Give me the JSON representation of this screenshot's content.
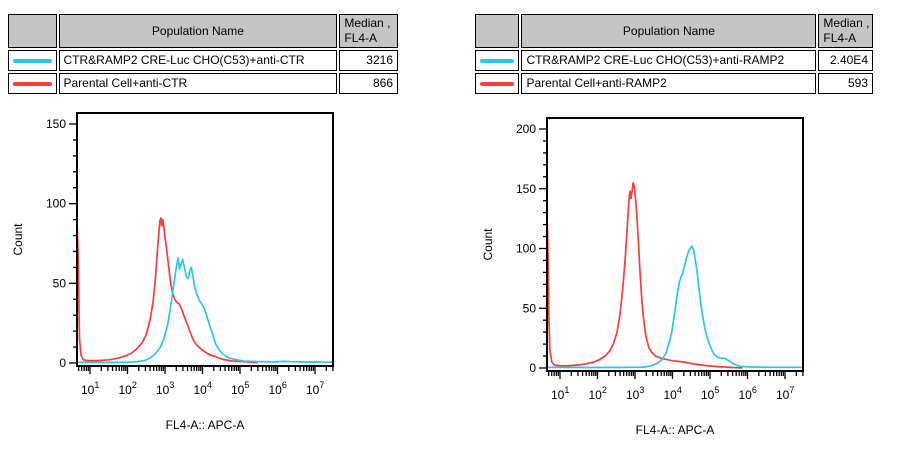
{
  "panels": [
    {
      "id": "anti-CTR",
      "table": {
        "population_header": "Population Name",
        "median_header_line1": "Median ,",
        "median_header_line2": "FL4-A",
        "rows": [
          {
            "color": "#2bc5f4",
            "name": "CTR&RAMP2 CRE-Luc CHO(C53)+anti-CTR",
            "median": "3216"
          },
          {
            "color": "#fa3c3c",
            "name": "Parental Cell+anti-CTR",
            "median": "866"
          }
        ]
      }
    },
    {
      "id": "anti-RAMP2",
      "table": {
        "population_header": "Population Name",
        "median_header_line1": "Median ,",
        "median_header_line2": "FL4-A",
        "rows": [
          {
            "color": "#2bc5f4",
            "name": "CTR&RAMP2 CRE-Luc CHO(C53)+anti-RAMP2",
            "median": "2.40E4"
          },
          {
            "color": "#fa3c3c",
            "name": "Parental Cell+anti-RAMP2",
            "median": "593"
          }
        ]
      }
    }
  ],
  "chart_data": [
    {
      "type": "line",
      "subtype": "flow-histogram",
      "xlabel": "FL4-A:: APC-A",
      "ylabel": "Count",
      "x_scale": "log10",
      "x_range_log": [
        0.653,
        7.48
      ],
      "x_major_decades": [
        1,
        2,
        3,
        4,
        5,
        6,
        7
      ],
      "x_tick_labels": [
        "10^1",
        "10^2",
        "10^3",
        "10^4",
        "10^5",
        "10^6",
        "10^7"
      ],
      "ylim": [
        0,
        157
      ],
      "y_ticks": [
        0,
        50,
        100,
        150
      ],
      "y_minor_step": 10,
      "grid": false,
      "legend_position": "none (series identified in table above)",
      "series": [
        {
          "name": "Parental Cell+anti-CTR",
          "color": "#fa3c3c",
          "median_fl4a": 866,
          "points_logx_count": [
            [
              0.653,
              0
            ],
            [
              0.66,
              85
            ],
            [
              0.68,
              70
            ],
            [
              0.7,
              40
            ],
            [
              0.72,
              15
            ],
            [
              0.76,
              5
            ],
            [
              0.82,
              2
            ],
            [
              0.95,
              1.5
            ],
            [
              1.2,
              1.5
            ],
            [
              1.5,
              2
            ],
            [
              1.75,
              3
            ],
            [
              1.95,
              4.5
            ],
            [
              2.1,
              6
            ],
            [
              2.25,
              9
            ],
            [
              2.4,
              13
            ],
            [
              2.5,
              18
            ],
            [
              2.6,
              27
            ],
            [
              2.68,
              38
            ],
            [
              2.74,
              52
            ],
            [
              2.79,
              68
            ],
            [
              2.83,
              80
            ],
            [
              2.86,
              89
            ],
            [
              2.89,
              91
            ],
            [
              2.91,
              86
            ],
            [
              2.94,
              90
            ],
            [
              2.97,
              85
            ],
            [
              3.0,
              79
            ],
            [
              3.04,
              72
            ],
            [
              3.08,
              64
            ],
            [
              3.12,
              56
            ],
            [
              3.16,
              49
            ],
            [
              3.2,
              44
            ],
            [
              3.26,
              40
            ],
            [
              3.32,
              38
            ],
            [
              3.38,
              37
            ],
            [
              3.44,
              34
            ],
            [
              3.5,
              30
            ],
            [
              3.58,
              25
            ],
            [
              3.66,
              20
            ],
            [
              3.74,
              15
            ],
            [
              3.82,
              12
            ],
            [
              3.9,
              10
            ],
            [
              4.0,
              8
            ],
            [
              4.1,
              6.5
            ],
            [
              4.2,
              5
            ],
            [
              4.35,
              4
            ],
            [
              4.5,
              2.5
            ],
            [
              4.65,
              1.8
            ],
            [
              4.8,
              1.2
            ],
            [
              5.0,
              1
            ],
            [
              5.2,
              0.6
            ],
            [
              5.45,
              0.2
            ]
          ]
        },
        {
          "name": "CTR&RAMP2 CRE-Luc CHO(C53)+anti-CTR",
          "color": "#2bc5f4",
          "median_fl4a": 3216,
          "points_logx_count": [
            [
              0.653,
              0.5
            ],
            [
              1.5,
              0.4
            ],
            [
              2.0,
              0.5
            ],
            [
              2.25,
              0.8
            ],
            [
              2.45,
              1.5
            ],
            [
              2.6,
              3
            ],
            [
              2.75,
              6
            ],
            [
              2.88,
              10
            ],
            [
              2.98,
              16
            ],
            [
              3.08,
              25
            ],
            [
              3.16,
              37
            ],
            [
              3.24,
              50
            ],
            [
              3.3,
              60
            ],
            [
              3.35,
              66
            ],
            [
              3.39,
              59
            ],
            [
              3.43,
              62
            ],
            [
              3.47,
              65
            ],
            [
              3.52,
              60
            ],
            [
              3.57,
              54
            ],
            [
              3.62,
              53
            ],
            [
              3.66,
              58
            ],
            [
              3.7,
              60
            ],
            [
              3.74,
              55
            ],
            [
              3.79,
              48
            ],
            [
              3.85,
              43
            ],
            [
              3.92,
              39
            ],
            [
              3.98,
              37
            ],
            [
              4.05,
              34
            ],
            [
              4.12,
              29
            ],
            [
              4.2,
              23
            ],
            [
              4.28,
              17
            ],
            [
              4.35,
              12
            ],
            [
              4.45,
              8
            ],
            [
              4.55,
              5.5
            ],
            [
              4.68,
              3.5
            ],
            [
              4.8,
              2.5
            ],
            [
              4.95,
              1.8
            ],
            [
              5.1,
              1.2
            ],
            [
              5.3,
              1
            ],
            [
              5.6,
              0.8
            ],
            [
              5.9,
              0.6
            ],
            [
              6.15,
              1
            ],
            [
              6.4,
              0.8
            ],
            [
              6.7,
              0.6
            ],
            [
              7.0,
              0.7
            ],
            [
              7.25,
              0.5
            ],
            [
              7.48,
              0.5
            ]
          ]
        }
      ]
    },
    {
      "type": "line",
      "subtype": "flow-histogram",
      "xlabel": "FL4-A:: APC-A",
      "ylabel": "Count",
      "x_scale": "log10",
      "x_range_log": [
        0.653,
        7.48
      ],
      "x_major_decades": [
        1,
        2,
        3,
        4,
        5,
        6,
        7
      ],
      "x_tick_labels": [
        "10^1",
        "10^2",
        "10^3",
        "10^4",
        "10^5",
        "10^6",
        "10^7"
      ],
      "ylim": [
        0,
        209
      ],
      "y_ticks": [
        0,
        50,
        100,
        150,
        200
      ],
      "y_minor_step": 10,
      "grid": false,
      "legend_position": "none (series identified in table above)",
      "series": [
        {
          "name": "Parental Cell+anti-RAMP2",
          "color": "#fa3c3c",
          "median_fl4a": 593,
          "points_logx_count": [
            [
              0.653,
              0
            ],
            [
              0.66,
              122
            ],
            [
              0.68,
              95
            ],
            [
              0.7,
              45
            ],
            [
              0.73,
              15
            ],
            [
              0.78,
              5
            ],
            [
              0.85,
              2.5
            ],
            [
              1.0,
              1.8
            ],
            [
              1.25,
              2
            ],
            [
              1.5,
              2.5
            ],
            [
              1.7,
              3.5
            ],
            [
              1.9,
              5
            ],
            [
              2.05,
              7
            ],
            [
              2.2,
              10
            ],
            [
              2.32,
              14
            ],
            [
              2.42,
              20
            ],
            [
              2.52,
              30
            ],
            [
              2.6,
              45
            ],
            [
              2.67,
              65
            ],
            [
              2.73,
              88
            ],
            [
              2.78,
              112
            ],
            [
              2.82,
              132
            ],
            [
              2.85,
              145
            ],
            [
              2.87,
              148
            ],
            [
              2.89,
              142
            ],
            [
              2.92,
              147
            ],
            [
              2.95,
              155
            ],
            [
              2.98,
              152
            ],
            [
              3.01,
              143
            ],
            [
              3.05,
              127
            ],
            [
              3.09,
              105
            ],
            [
              3.13,
              82
            ],
            [
              3.17,
              62
            ],
            [
              3.21,
              46
            ],
            [
              3.26,
              33
            ],
            [
              3.31,
              24
            ],
            [
              3.37,
              17
            ],
            [
              3.45,
              13
            ],
            [
              3.55,
              10
            ],
            [
              3.7,
              8
            ],
            [
              3.85,
              7
            ],
            [
              4.0,
              6
            ],
            [
              4.15,
              5.5
            ],
            [
              4.3,
              5
            ],
            [
              4.45,
              4
            ],
            [
              4.6,
              3.2
            ],
            [
              4.75,
              2.6
            ],
            [
              4.9,
              2
            ],
            [
              5.05,
              1.6
            ],
            [
              5.2,
              1.2
            ],
            [
              5.4,
              0.8
            ],
            [
              5.6,
              0.4
            ],
            [
              5.85,
              0.1
            ]
          ]
        },
        {
          "name": "CTR&RAMP2 CRE-Luc CHO(C53)+anti-RAMP2",
          "color": "#2bc5f4",
          "median_fl4a": 24000,
          "points_logx_count": [
            [
              0.653,
              0.5
            ],
            [
              2.0,
              0.4
            ],
            [
              2.8,
              0.5
            ],
            [
              3.1,
              0.6
            ],
            [
              3.3,
              1
            ],
            [
              3.45,
              2
            ],
            [
              3.6,
              4
            ],
            [
              3.72,
              7
            ],
            [
              3.82,
              12
            ],
            [
              3.9,
              20
            ],
            [
              3.98,
              30
            ],
            [
              4.05,
              45
            ],
            [
              4.12,
              60
            ],
            [
              4.17,
              70
            ],
            [
              4.22,
              76
            ],
            [
              4.27,
              79
            ],
            [
              4.32,
              85
            ],
            [
              4.37,
              92
            ],
            [
              4.42,
              97
            ],
            [
              4.47,
              100
            ],
            [
              4.52,
              102
            ],
            [
              4.56,
              99
            ],
            [
              4.6,
              92
            ],
            [
              4.65,
              82
            ],
            [
              4.7,
              68
            ],
            [
              4.75,
              55
            ],
            [
              4.8,
              44
            ],
            [
              4.85,
              35
            ],
            [
              4.9,
              28
            ],
            [
              4.97,
              21
            ],
            [
              5.05,
              15
            ],
            [
              5.12,
              11
            ],
            [
              5.2,
              9
            ],
            [
              5.3,
              8
            ],
            [
              5.4,
              8
            ],
            [
              5.5,
              6
            ],
            [
              5.6,
              4
            ],
            [
              5.7,
              2.5
            ],
            [
              5.8,
              1.5
            ],
            [
              5.95,
              1
            ],
            [
              6.1,
              0.8
            ],
            [
              6.4,
              0.7
            ],
            [
              6.8,
              0.6
            ],
            [
              7.1,
              0.6
            ],
            [
              7.48,
              0.6
            ]
          ]
        }
      ]
    }
  ]
}
